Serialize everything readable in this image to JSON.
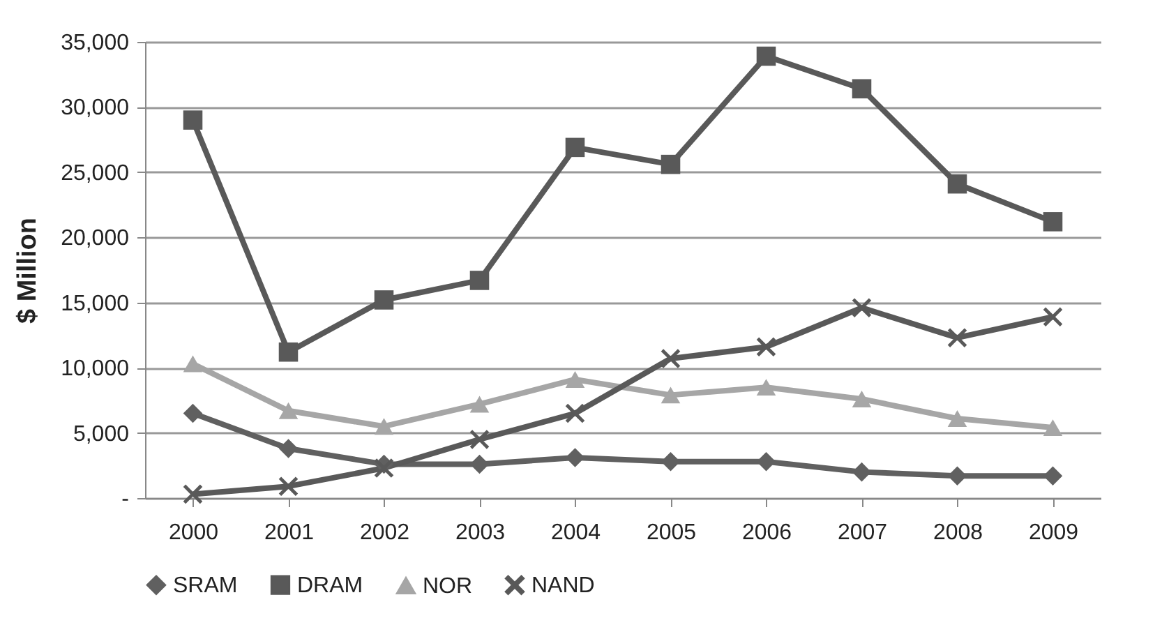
{
  "chart_data": {
    "type": "line",
    "ylabel": "$ Million",
    "categories": [
      "2000",
      "2001",
      "2002",
      "2003",
      "2004",
      "2005",
      "2006",
      "2007",
      "2008",
      "2009"
    ],
    "ylim": [
      0,
      35000
    ],
    "yticks": [
      {
        "value": 0,
        "label": "-"
      },
      {
        "value": 5000,
        "label": "5,000"
      },
      {
        "value": 10000,
        "label": "10,000"
      },
      {
        "value": 15000,
        "label": "15,000"
      },
      {
        "value": 20000,
        "label": "20,000"
      },
      {
        "value": 25000,
        "label": "25,000"
      },
      {
        "value": 30000,
        "label": "30,000"
      },
      {
        "value": 35000,
        "label": "35,000"
      }
    ],
    "grid": "y",
    "legend": "bottom",
    "line_style": "solid",
    "series": [
      {
        "name": "SRAM",
        "color": "#606060",
        "marker": "diamond",
        "values": [
          6500,
          3800,
          2600,
          2600,
          3100,
          2800,
          2800,
          2000,
          1700,
          1700
        ]
      },
      {
        "name": "DRAM",
        "color": "#595959",
        "marker": "square",
        "values": [
          29000,
          11200,
          15200,
          16700,
          26900,
          25600,
          33900,
          31400,
          24100,
          21200
        ]
      },
      {
        "name": "NOR",
        "color": "#a6a6a6",
        "marker": "triangle",
        "values": [
          10300,
          6700,
          5500,
          7200,
          9100,
          7900,
          8500,
          7600,
          6100,
          5400
        ]
      },
      {
        "name": "NAND",
        "color": "#595959",
        "marker": "cross",
        "values": [
          300,
          900,
          2300,
          4500,
          6500,
          10700,
          11600,
          14600,
          12300,
          13900
        ]
      }
    ]
  }
}
